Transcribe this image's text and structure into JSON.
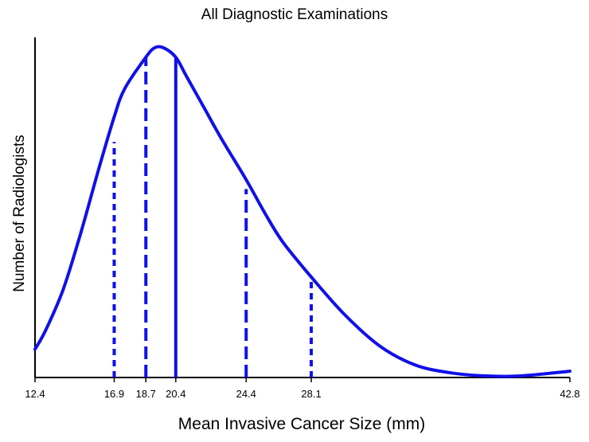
{
  "chart_data": {
    "type": "line",
    "title": "All Diagnostic Examinations",
    "xlabel": "Mean Invasive Cancer Size (mm)",
    "ylabel": "Number of Radiologists",
    "xlim": [
      12.4,
      42.8
    ],
    "ylim": [
      0,
      1
    ],
    "x_ticks": [
      "12.4",
      "16.9",
      "18.7",
      "20.4",
      "24.4",
      "28.1",
      "42.8"
    ],
    "y_ticks": [],
    "grid": false,
    "legend": "none",
    "color": "#1010e8",
    "series": [
      {
        "x": [
          12.4,
          13.0,
          14.0,
          15.0,
          16.0,
          16.9,
          17.5,
          18.7,
          19.2,
          19.7,
          20.4,
          21.0,
          22.0,
          23.0,
          24.4,
          25.5,
          26.5,
          28.1,
          30.0,
          32.0,
          34.0,
          36.0,
          38.0,
          40.0,
          42.8
        ],
        "y": [
          0.09,
          0.15,
          0.28,
          0.46,
          0.66,
          0.83,
          0.92,
          1.02,
          1.05,
          1.05,
          1.02,
          0.96,
          0.86,
          0.76,
          0.63,
          0.52,
          0.43,
          0.32,
          0.2,
          0.1,
          0.04,
          0.015,
          0.005,
          0.005,
          0.02
        ]
      }
    ],
    "reference_lines": [
      {
        "x": 16.9,
        "height": 0.75,
        "style": "dotted"
      },
      {
        "x": 18.7,
        "height": 1.02,
        "style": "dashed"
      },
      {
        "x": 20.4,
        "height": 1.02,
        "style": "solid"
      },
      {
        "x": 24.4,
        "height": 0.6,
        "style": "dashed"
      },
      {
        "x": 28.1,
        "height": 0.32,
        "style": "dotted"
      }
    ]
  }
}
